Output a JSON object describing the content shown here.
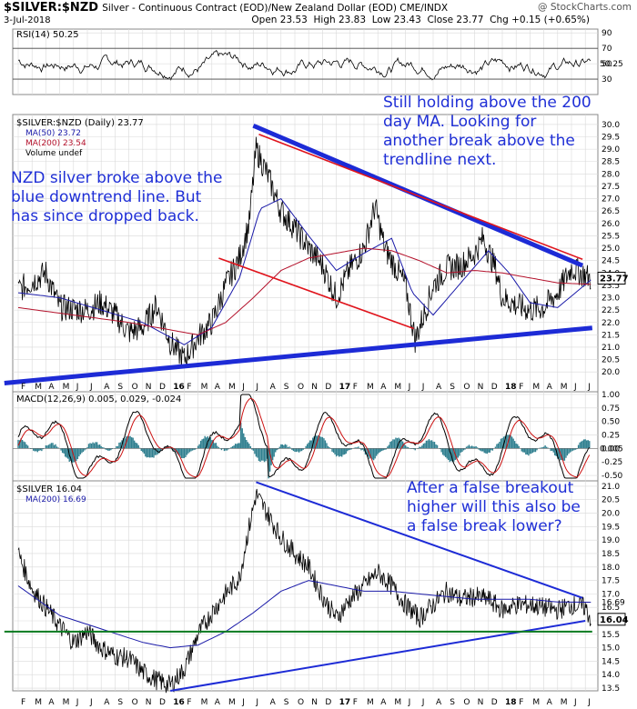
{
  "header": {
    "symbol": "$SILVER:$NZD",
    "description": "Silver - Continuous Contract (EOD)/New Zealand Dollar (EOD)  CME/INDX",
    "source": "@ StockCharts.com",
    "date": "3-Jul-2018",
    "ohlc": "Open 23.53  High 23.83  Low 23.43  Close 23.77  Chg +0.15 (+0.65%)"
  },
  "annotations": {
    "top_right": "Still holding above the 200 day MA. Looking for another break above the trendline next.",
    "top_left": "NZD silver broke above the blue downtrend line. But has since dropped back.",
    "bottom": "After a false breakout higher will this also be a false break lower?"
  },
  "colors": {
    "price": "#000000",
    "ma50": "#1a1aa8",
    "ma200": "#b3102a",
    "trendline_blue": "#1d2bd6",
    "channel_red": "#e0141c",
    "support_green": "#0a7a1f",
    "histogram": "#2f7f8f",
    "grid": "#d9d9d9"
  },
  "x_axis": {
    "labels": [
      "F",
      "M",
      "A",
      "M",
      "J",
      "J",
      "A",
      "S",
      "O",
      "N",
      "D",
      "16",
      "F",
      "M",
      "A",
      "M",
      "J",
      "J",
      "A",
      "S",
      "O",
      "N",
      "D",
      "17",
      "F",
      "M",
      "A",
      "M",
      "J",
      "J",
      "A",
      "S",
      "O",
      "N",
      "D",
      "18",
      "F",
      "M",
      "A",
      "M",
      "J",
      "J"
    ]
  },
  "chart_data": [
    {
      "type": "line",
      "title": "RSI(14) 50.25",
      "ylim": [
        10,
        95
      ],
      "yticks": [
        90,
        70,
        50,
        30
      ],
      "last_value_label": "50.25",
      "reference_lines": [
        70,
        30
      ]
    },
    {
      "type": "line",
      "title": "$SILVER:$NZD (Daily) 23.77",
      "ylim": [
        19.2,
        30.4
      ],
      "yticks": [
        20.0,
        20.5,
        21.0,
        21.5,
        22.0,
        22.5,
        23.0,
        23.5,
        24.0,
        24.5,
        25.0,
        25.5,
        26.0,
        26.5,
        27.0,
        27.5,
        28.0,
        28.5,
        29.0,
        29.5,
        30.0
      ],
      "last_value_label": "23.77",
      "legend": [
        "MA(50) 23.72",
        "MA(200) 23.54",
        "Volume undef"
      ],
      "series": [
        {
          "name": "$SILVER:$NZD",
          "points": [
            [
              0,
              23.3
            ],
            [
              2,
              24.0
            ],
            [
              3,
              22.6
            ],
            [
              5,
              22.5
            ],
            [
              6,
              22.8
            ],
            [
              7,
              22.3
            ],
            [
              8,
              21.6
            ],
            [
              9,
              21.8
            ],
            [
              10,
              22.7
            ],
            [
              11,
              21.2
            ],
            [
              12,
              20.5
            ],
            [
              13,
              21.4
            ],
            [
              14,
              22.0
            ],
            [
              15,
              23.5
            ],
            [
              16,
              24.6
            ],
            [
              16.7,
              26.0
            ],
            [
              17.2,
              29.0
            ],
            [
              18,
              28.0
            ],
            [
              19,
              26.5
            ],
            [
              20,
              25.8
            ],
            [
              21,
              25.0
            ],
            [
              22,
              24.3
            ],
            [
              23,
              23.0
            ],
            [
              24,
              24.2
            ],
            [
              25,
              25.0
            ],
            [
              25.8,
              26.7
            ],
            [
              26.5,
              25.0
            ],
            [
              27,
              24.5
            ],
            [
              28,
              23.5
            ],
            [
              28.7,
              21.3
            ],
            [
              29.5,
              22.6
            ],
            [
              30,
              23.5
            ],
            [
              31,
              24.2
            ],
            [
              32,
              24.3
            ],
            [
              33,
              24.8
            ],
            [
              33.6,
              25.4
            ],
            [
              34.5,
              24.2
            ],
            [
              35,
              23.0
            ],
            [
              36,
              22.7
            ],
            [
              37,
              22.5
            ],
            [
              38,
              22.6
            ],
            [
              39,
              23.2
            ],
            [
              40,
              24.2
            ],
            [
              41,
              23.9
            ],
            [
              41.4,
              23.77
            ]
          ]
        },
        {
          "name": "MA(50)",
          "points": [
            [
              0,
              23.2
            ],
            [
              3,
              23.0
            ],
            [
              6,
              22.5
            ],
            [
              9,
              22.0
            ],
            [
              12,
              21.1
            ],
            [
              14,
              21.8
            ],
            [
              16,
              23.8
            ],
            [
              17.5,
              26.6
            ],
            [
              19,
              27.0
            ],
            [
              21,
              25.5
            ],
            [
              23,
              24.1
            ],
            [
              25,
              24.8
            ],
            [
              27,
              25.4
            ],
            [
              28.5,
              23.2
            ],
            [
              30,
              22.3
            ],
            [
              32,
              23.6
            ],
            [
              34,
              24.9
            ],
            [
              35.5,
              24.0
            ],
            [
              37,
              22.8
            ],
            [
              39,
              22.6
            ],
            [
              41.4,
              23.72
            ]
          ]
        },
        {
          "name": "MA(200)",
          "points": [
            [
              0,
              22.6
            ],
            [
              4,
              22.3
            ],
            [
              8,
              22.0
            ],
            [
              11,
              21.7
            ],
            [
              13,
              21.5
            ],
            [
              15,
              22.0
            ],
            [
              17,
              23.0
            ],
            [
              19,
              24.1
            ],
            [
              21,
              24.6
            ],
            [
              23,
              24.8
            ],
            [
              25,
              25.0
            ],
            [
              27,
              24.9
            ],
            [
              29,
              24.5
            ],
            [
              31,
              24.0
            ],
            [
              33,
              24.1
            ],
            [
              35,
              24.0
            ],
            [
              37,
              23.8
            ],
            [
              39,
              23.6
            ],
            [
              41.4,
              23.54
            ]
          ]
        }
      ],
      "trendlines": [
        {
          "color": "blue",
          "from": [
            -1,
            19.55
          ],
          "to": [
            41.5,
            21.78
          ]
        },
        {
          "color": "blue",
          "from": [
            17,
            29.95
          ],
          "to": [
            40.8,
            24.3
          ]
        },
        {
          "color": "red",
          "from": [
            17.4,
            29.6
          ],
          "to": [
            40.8,
            24.55
          ]
        },
        {
          "color": "red",
          "from": [
            14.5,
            24.6
          ],
          "to": [
            28.6,
            21.75
          ]
        }
      ]
    },
    {
      "type": "line",
      "title": "MACD(12,26,9) 0.005, 0.029, -0.024",
      "ylim": [
        -0.6,
        1.05
      ],
      "yticks": [
        1.0,
        0.75,
        0.5,
        0.25,
        0.0,
        -0.25,
        -0.5
      ],
      "last_value_label": "0.005",
      "series_names": [
        "MACD",
        "Signal",
        "Histogram"
      ]
    },
    {
      "type": "line",
      "title": "$SILVER 16.04",
      "ylim": [
        13.4,
        21.2
      ],
      "yticks": [
        13.5,
        14.0,
        14.5,
        15.0,
        15.5,
        16.0,
        16.5,
        17.0,
        17.5,
        18.0,
        18.5,
        19.0,
        19.5,
        20.0,
        20.5,
        21.0
      ],
      "last_value_label": "16.04",
      "ma_value_label": "16.69",
      "legend": [
        "MA(200) 16.69"
      ],
      "series": [
        {
          "name": "$SILVER",
          "points": [
            [
              0,
              18.5
            ],
            [
              1,
              17.2
            ],
            [
              2,
              16.5
            ],
            [
              3,
              15.8
            ],
            [
              4,
              15.2
            ],
            [
              5,
              15.6
            ],
            [
              6,
              15.0
            ],
            [
              7,
              14.7
            ],
            [
              8,
              14.6
            ],
            [
              9,
              14.1
            ],
            [
              10,
              13.8
            ],
            [
              11,
              13.6
            ],
            [
              12,
              14.2
            ],
            [
              13,
              15.5
            ],
            [
              14,
              16.3
            ],
            [
              15,
              17.0
            ],
            [
              16,
              17.6
            ],
            [
              16.5,
              19.0
            ],
            [
              17.2,
              20.7
            ],
            [
              18,
              20.0
            ],
            [
              19,
              19.1
            ],
            [
              20,
              18.5
            ],
            [
              21,
              18.0
            ],
            [
              22,
              16.9
            ],
            [
              23,
              16.1
            ],
            [
              24,
              16.8
            ],
            [
              25,
              17.3
            ],
            [
              26,
              17.8
            ],
            [
              27,
              17.3
            ],
            [
              28,
              16.6
            ],
            [
              29,
              16.1
            ],
            [
              30,
              16.6
            ],
            [
              31,
              17.1
            ],
            [
              32,
              16.8
            ],
            [
              33,
              16.9
            ],
            [
              34,
              16.8
            ],
            [
              35,
              16.4
            ],
            [
              36,
              16.6
            ],
            [
              37,
              16.6
            ],
            [
              38,
              16.5
            ],
            [
              39,
              16.4
            ],
            [
              40,
              16.6
            ],
            [
              41,
              16.5
            ],
            [
              41.4,
              16.04
            ]
          ]
        },
        {
          "name": "MA(200)",
          "points": [
            [
              0,
              17.3
            ],
            [
              3,
              16.2
            ],
            [
              6,
              15.7
            ],
            [
              9,
              15.2
            ],
            [
              11,
              15.0
            ],
            [
              13,
              15.1
            ],
            [
              15,
              15.6
            ],
            [
              17,
              16.3
            ],
            [
              19,
              17.1
            ],
            [
              21,
              17.5
            ],
            [
              23,
              17.3
            ],
            [
              25,
              17.1
            ],
            [
              27,
              17.1
            ],
            [
              29,
              17.0
            ],
            [
              31,
              16.9
            ],
            [
              33,
              16.8
            ],
            [
              35,
              16.8
            ],
            [
              37,
              16.8
            ],
            [
              39,
              16.7
            ],
            [
              41.4,
              16.69
            ]
          ]
        }
      ],
      "trendlines": [
        {
          "color": "blue",
          "from": [
            17.2,
            21.15
          ],
          "to": [
            40.8,
            16.85
          ]
        },
        {
          "color": "blue",
          "from": [
            11,
            13.4
          ],
          "to": [
            41,
            16.0
          ]
        },
        {
          "color": "green",
          "from": [
            -1,
            15.6
          ],
          "to": [
            41.5,
            15.6
          ]
        }
      ]
    }
  ]
}
